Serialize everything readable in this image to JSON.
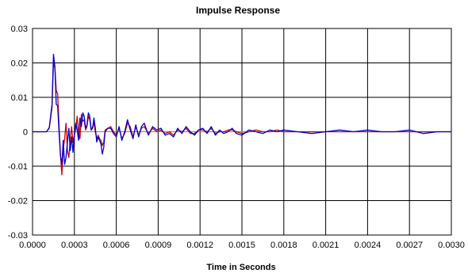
{
  "chart_data": {
    "type": "line",
    "title": "Impulse Response",
    "xlabel": "Time in Seconds",
    "ylabel": "",
    "xlim": [
      0,
      0.003
    ],
    "ylim": [
      -0.03,
      0.03
    ],
    "x_ticks": [
      "0.0000",
      "0.0003",
      "0.0006",
      "0.0009",
      "0.0012",
      "0.0015",
      "0.0018",
      "0.0021",
      "0.0024",
      "0.0027",
      "0.0030"
    ],
    "y_ticks": [
      "0.03",
      "0.02",
      "0.01",
      "0",
      "-0.01",
      "-0.02",
      "-0.03"
    ],
    "grid": true,
    "legend": "none",
    "colors": {
      "plot_border": "#000000",
      "grid": "#000000",
      "zero_line": "#808080"
    },
    "series": [
      {
        "color": "#0000cc",
        "x": [
          0.0,
          5e-05,
          0.0001,
          0.00012,
          0.00014,
          0.00015,
          0.00016,
          0.00017,
          0.00018,
          0.00019,
          0.0002,
          0.00021,
          0.00022,
          0.00023,
          0.00024,
          0.00025,
          0.00026,
          0.00027,
          0.00028,
          0.00029,
          0.0003,
          0.00031,
          0.00032,
          0.00033,
          0.00034,
          0.00035,
          0.00036,
          0.00037,
          0.00038,
          0.00039,
          0.0004,
          0.00041,
          0.00042,
          0.00043,
          0.00044,
          0.00045,
          0.00046,
          0.00047,
          0.00048,
          0.00049,
          0.0005,
          0.00051,
          0.00052,
          0.00054,
          0.00056,
          0.00058,
          0.0006,
          0.00062,
          0.00064,
          0.00066,
          0.00068,
          0.0007,
          0.00072,
          0.00074,
          0.00076,
          0.00078,
          0.0008,
          0.00083,
          0.00086,
          0.00089,
          0.00092,
          0.00095,
          0.00098,
          0.00101,
          0.00104,
          0.00107,
          0.0011,
          0.00113,
          0.00116,
          0.00119,
          0.00122,
          0.00125,
          0.00128,
          0.00131,
          0.00134,
          0.00137,
          0.0014,
          0.00143,
          0.00146,
          0.0015,
          0.00155,
          0.0016,
          0.00165,
          0.0017,
          0.00175,
          0.0018,
          0.0019,
          0.002,
          0.0021,
          0.0022,
          0.0023,
          0.0024,
          0.0025,
          0.0026,
          0.0027,
          0.0028,
          0.0029,
          0.003
        ],
        "y": [
          0.0,
          0.0,
          0.0,
          0.0012,
          0.008,
          0.0225,
          0.019,
          0.008,
          0.0075,
          0.0,
          -0.007,
          -0.0095,
          -0.0025,
          -0.0095,
          -0.0075,
          -0.003,
          0.001,
          -0.0055,
          -0.0015,
          -0.006,
          -0.0005,
          0.0025,
          0.0005,
          -0.0025,
          0.004,
          0.0015,
          0.0055,
          0.0045,
          0.001,
          0.002,
          0.0055,
          0.0045,
          0.0005,
          0.001,
          0.004,
          0.001,
          -0.003,
          -0.0015,
          -0.0025,
          -0.0035,
          -0.0065,
          -0.0045,
          0.0,
          0.001,
          0.001,
          -0.0005,
          -0.0015,
          0.0015,
          -0.0025,
          0.0,
          0.0035,
          0.0005,
          -0.002,
          0.002,
          -0.0015,
          0.0015,
          0.0025,
          -0.001,
          0.0015,
          0.0005,
          0.001,
          -0.001,
          -0.0005,
          -0.0015,
          0.001,
          -0.0005,
          0.0015,
          0.0,
          -0.001,
          0.0005,
          0.001,
          -0.0005,
          0.0015,
          -0.001,
          0.0005,
          -0.0005,
          0.0,
          0.001,
          -0.0005,
          -0.001,
          0.0005,
          0.0,
          -0.0005,
          0.0005,
          0.0,
          0.0005,
          0.0,
          -0.0005,
          0.0,
          0.0005,
          0.0,
          0.0005,
          0.0,
          0.0,
          0.0005,
          -0.0005,
          0.0,
          0.0
        ]
      },
      {
        "color": "#cc0000",
        "x": [
          0.0,
          5e-05,
          0.0001,
          0.00012,
          0.00014,
          0.00015,
          0.00016,
          0.00017,
          0.00018,
          0.00019,
          0.0002,
          0.00021,
          0.00022,
          0.00023,
          0.00024,
          0.00025,
          0.00026,
          0.00027,
          0.00028,
          0.00029,
          0.0003,
          0.00031,
          0.00032,
          0.00033,
          0.00034,
          0.00035,
          0.00036,
          0.00037,
          0.00038,
          0.00039,
          0.0004,
          0.00041,
          0.00042,
          0.00043,
          0.00044,
          0.00045,
          0.00046,
          0.00047,
          0.00048,
          0.00049,
          0.0005,
          0.00051,
          0.00052,
          0.00054,
          0.00056,
          0.00058,
          0.0006,
          0.00062,
          0.00064,
          0.00066,
          0.00068,
          0.0007,
          0.00072,
          0.00074,
          0.00076,
          0.00078,
          0.0008,
          0.00083,
          0.00086,
          0.00089,
          0.00092,
          0.00095,
          0.00098,
          0.00101,
          0.00104,
          0.00107,
          0.0011,
          0.00113,
          0.00116,
          0.00119,
          0.00122,
          0.00125,
          0.00128,
          0.00131,
          0.00134,
          0.00137,
          0.0014,
          0.00143,
          0.00146,
          0.0015,
          0.00155,
          0.0016,
          0.00165,
          0.0017,
          0.00175,
          0.0018,
          0.0019,
          0.002,
          0.0021,
          0.0022,
          0.0023,
          0.0024,
          0.0025,
          0.0026,
          0.0027,
          0.0028,
          0.0029,
          0.003
        ],
        "y": [
          0.0,
          0.0,
          0.0,
          0.001,
          0.007,
          0.02,
          0.0185,
          0.012,
          0.011,
          0.002,
          -0.0065,
          -0.0125,
          -0.005,
          -0.002,
          0.0025,
          -0.0055,
          -0.0075,
          -0.0025,
          0.0015,
          -0.003,
          -0.001,
          0.001,
          0.0045,
          -0.0005,
          -0.002,
          0.005,
          0.003,
          0.0035,
          0.0005,
          0.0015,
          0.0045,
          0.0035,
          0.0005,
          0.0015,
          0.0025,
          0.0,
          -0.002,
          -0.001,
          -0.002,
          -0.0025,
          -0.004,
          -0.003,
          0.0005,
          0.001,
          0.0015,
          0.0,
          -0.001,
          0.001,
          -0.002,
          -0.0005,
          0.0025,
          0.0015,
          -0.0015,
          0.0015,
          -0.001,
          0.001,
          0.0015,
          -0.0005,
          0.001,
          0.0,
          0.0005,
          -0.0005,
          0.0,
          -0.001,
          0.0005,
          0.0,
          0.001,
          -0.0005,
          -0.0005,
          0.0005,
          0.0005,
          0.0,
          0.001,
          -0.0005,
          0.0,
          0.0,
          0.0005,
          0.0005,
          0.0,
          -0.0005,
          0.0,
          0.0005,
          0.0,
          0.0,
          0.0005,
          0.0,
          0.0,
          0.0,
          0.0,
          0.0,
          0.0,
          0.0,
          0.0,
          0.0,
          0.0,
          0.0,
          0.0,
          0.0
        ]
      }
    ]
  }
}
